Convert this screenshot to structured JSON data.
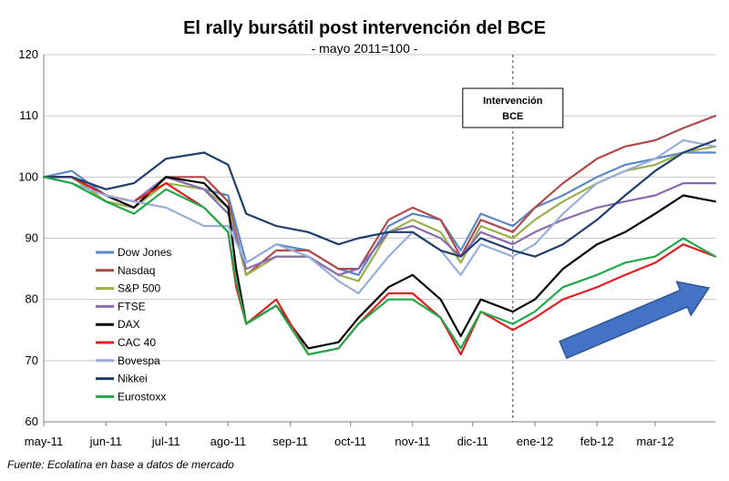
{
  "chart_data": {
    "type": "line",
    "title": "El rally bursátil post intervención del BCE",
    "subtitle": "- mayo 2011=100 -",
    "xlabel": "",
    "ylabel": "",
    "ylim": [
      60,
      120
    ],
    "yticks": [
      60,
      70,
      80,
      90,
      100,
      110,
      120
    ],
    "x_range": [
      "2011-05-01",
      "2012-03-31"
    ],
    "xticks": [
      {
        "label": "may-11",
        "date": "2011-05-01"
      },
      {
        "label": "jun-11",
        "date": "2011-06-01"
      },
      {
        "label": "jul-11",
        "date": "2011-07-01"
      },
      {
        "label": "ago-11",
        "date": "2011-08-01"
      },
      {
        "label": "sep-11",
        "date": "2011-09-01"
      },
      {
        "label": "oct-11",
        "date": "2011-10-01"
      },
      {
        "label": "nov-11",
        "date": "2011-11-01"
      },
      {
        "label": "dic-11",
        "date": "2011-12-01"
      },
      {
        "label": "ene-12",
        "date": "2012-01-01"
      },
      {
        "label": "feb-12",
        "date": "2012-02-01"
      },
      {
        "label": "mar-12",
        "date": "2012-03-01"
      }
    ],
    "grid": true,
    "legend_position": "left-bottom",
    "source": "Fuente: Ecolatina en base a datos de mercado",
    "annotation": {
      "lines": [
        "Intervención",
        "BCE"
      ],
      "date": "2011-12-21"
    },
    "arrow_color": "#4472C4",
    "series": [
      {
        "name": "Dow Jones",
        "color": "#5B87C7",
        "x": [
          "2011-05-01",
          "2011-05-15",
          "2011-06-01",
          "2011-06-15",
          "2011-07-01",
          "2011-07-20",
          "2011-08-01",
          "2011-08-10",
          "2011-08-25",
          "2011-09-10",
          "2011-09-25",
          "2011-10-05",
          "2011-10-20",
          "2011-11-01",
          "2011-11-15",
          "2011-11-25",
          "2011-12-05",
          "2011-12-21",
          "2012-01-01",
          "2012-01-15",
          "2012-02-01",
          "2012-02-15",
          "2012-03-01",
          "2012-03-15",
          "2012-03-31"
        ],
        "values": [
          100,
          101,
          97,
          96,
          100,
          98,
          97,
          86,
          89,
          88,
          85,
          84,
          92,
          94,
          93,
          88,
          94,
          92,
          95,
          97,
          100,
          102,
          103,
          104,
          104
        ]
      },
      {
        "name": "Nasdaq",
        "color": "#B04A4A",
        "x": [
          "2011-05-01",
          "2011-05-15",
          "2011-06-01",
          "2011-06-15",
          "2011-07-01",
          "2011-07-20",
          "2011-08-01",
          "2011-08-10",
          "2011-08-25",
          "2011-09-10",
          "2011-09-25",
          "2011-10-05",
          "2011-10-20",
          "2011-11-01",
          "2011-11-15",
          "2011-11-25",
          "2011-12-05",
          "2011-12-21",
          "2012-01-01",
          "2012-01-15",
          "2012-02-01",
          "2012-02-15",
          "2012-03-01",
          "2012-03-15",
          "2012-03-31"
        ],
        "values": [
          100,
          100,
          96,
          95,
          100,
          100,
          96,
          84,
          88,
          88,
          85,
          85,
          93,
          95,
          93,
          87,
          93,
          91,
          95,
          99,
          103,
          105,
          106,
          108,
          110
        ]
      },
      {
        "name": "S&P 500",
        "color": "#98B04A",
        "x": [
          "2011-05-01",
          "2011-05-15",
          "2011-06-01",
          "2011-06-15",
          "2011-07-01",
          "2011-07-20",
          "2011-08-01",
          "2011-08-10",
          "2011-08-25",
          "2011-09-10",
          "2011-09-25",
          "2011-10-05",
          "2011-10-20",
          "2011-11-01",
          "2011-11-15",
          "2011-11-25",
          "2011-12-05",
          "2011-12-21",
          "2012-01-01",
          "2012-01-15",
          "2012-02-01",
          "2012-02-15",
          "2012-03-01",
          "2012-03-15",
          "2012-03-31"
        ],
        "values": [
          100,
          100,
          96,
          95,
          99,
          98,
          95,
          84,
          87,
          87,
          84,
          83,
          91,
          93,
          91,
          86,
          92,
          90,
          93,
          96,
          99,
          101,
          102,
          104,
          105
        ]
      },
      {
        "name": "FTSE",
        "color": "#8A6BB0",
        "x": [
          "2011-05-01",
          "2011-05-15",
          "2011-06-01",
          "2011-06-15",
          "2011-07-01",
          "2011-07-20",
          "2011-08-01",
          "2011-08-10",
          "2011-08-25",
          "2011-09-10",
          "2011-09-25",
          "2011-10-05",
          "2011-10-20",
          "2011-11-01",
          "2011-11-15",
          "2011-11-25",
          "2011-12-05",
          "2011-12-21",
          "2012-01-01",
          "2012-01-15",
          "2012-02-01",
          "2012-02-15",
          "2012-03-01",
          "2012-03-15",
          "2012-03-31"
        ],
        "values": [
          100,
          100,
          97,
          96,
          100,
          98,
          94,
          85,
          87,
          87,
          84,
          85,
          91,
          92,
          90,
          87,
          91,
          89,
          91,
          93,
          95,
          96,
          97,
          99,
          99
        ]
      },
      {
        "name": "DAX",
        "color": "#000000",
        "x": [
          "2011-05-01",
          "2011-05-15",
          "2011-06-01",
          "2011-06-15",
          "2011-07-01",
          "2011-07-20",
          "2011-08-01",
          "2011-08-05",
          "2011-08-10",
          "2011-08-25",
          "2011-09-10",
          "2011-09-25",
          "2011-10-05",
          "2011-10-20",
          "2011-11-01",
          "2011-11-15",
          "2011-11-25",
          "2011-12-05",
          "2011-12-21",
          "2012-01-01",
          "2012-01-15",
          "2012-02-01",
          "2012-02-15",
          "2012-03-01",
          "2012-03-15",
          "2012-03-31"
        ],
        "values": [
          100,
          100,
          97,
          95,
          100,
          99,
          95,
          85,
          76,
          79,
          72,
          73,
          77,
          82,
          84,
          80,
          74,
          80,
          78,
          80,
          85,
          89,
          91,
          94,
          97,
          96
        ]
      },
      {
        "name": "CAC 40",
        "color": "#E02020",
        "x": [
          "2011-05-01",
          "2011-05-15",
          "2011-06-01",
          "2011-06-15",
          "2011-07-01",
          "2011-07-20",
          "2011-08-01",
          "2011-08-05",
          "2011-08-10",
          "2011-08-25",
          "2011-09-10",
          "2011-09-25",
          "2011-10-05",
          "2011-10-20",
          "2011-11-01",
          "2011-11-15",
          "2011-11-25",
          "2011-12-05",
          "2011-12-21",
          "2012-01-01",
          "2012-01-15",
          "2012-02-01",
          "2012-02-15",
          "2012-03-01",
          "2012-03-15",
          "2012-03-31"
        ],
        "values": [
          100,
          100,
          97,
          96,
          99,
          95,
          91,
          82,
          76,
          80,
          71,
          72,
          76,
          81,
          81,
          77,
          71,
          78,
          75,
          77,
          80,
          82,
          84,
          86,
          89,
          87
        ]
      },
      {
        "name": "Bovespa",
        "color": "#98AEDA",
        "x": [
          "2011-05-01",
          "2011-05-15",
          "2011-06-01",
          "2011-06-15",
          "2011-07-01",
          "2011-07-20",
          "2011-08-01",
          "2011-08-10",
          "2011-08-25",
          "2011-09-10",
          "2011-09-25",
          "2011-10-05",
          "2011-10-20",
          "2011-11-01",
          "2011-11-15",
          "2011-11-25",
          "2011-12-05",
          "2011-12-21",
          "2012-01-01",
          "2012-01-15",
          "2012-02-01",
          "2012-02-15",
          "2012-03-01",
          "2012-03-15",
          "2012-03-31"
        ],
        "values": [
          100,
          99,
          97,
          96,
          95,
          92,
          92,
          86,
          89,
          87,
          83,
          81,
          87,
          91,
          88,
          84,
          89,
          87,
          89,
          94,
          99,
          101,
          103,
          106,
          105
        ]
      },
      {
        "name": "Nikkei",
        "color": "#1F3E6E",
        "x": [
          "2011-05-01",
          "2011-05-15",
          "2011-06-01",
          "2011-06-15",
          "2011-07-01",
          "2011-07-20",
          "2011-08-01",
          "2011-08-10",
          "2011-08-25",
          "2011-09-10",
          "2011-09-25",
          "2011-10-05",
          "2011-10-20",
          "2011-11-01",
          "2011-11-15",
          "2011-11-25",
          "2011-12-05",
          "2011-12-21",
          "2012-01-01",
          "2012-01-15",
          "2012-02-01",
          "2012-02-15",
          "2012-03-01",
          "2012-03-15",
          "2012-03-31"
        ],
        "values": [
          100,
          100,
          98,
          99,
          103,
          104,
          102,
          94,
          92,
          91,
          89,
          90,
          91,
          91,
          88,
          87,
          90,
          88,
          87,
          89,
          93,
          97,
          101,
          104,
          106
        ]
      },
      {
        "name": "Eurostoxx",
        "color": "#22A84A",
        "x": [
          "2011-05-01",
          "2011-05-15",
          "2011-06-01",
          "2011-06-15",
          "2011-07-01",
          "2011-07-20",
          "2011-08-01",
          "2011-08-05",
          "2011-08-10",
          "2011-08-25",
          "2011-09-10",
          "2011-09-25",
          "2011-10-05",
          "2011-10-20",
          "2011-11-01",
          "2011-11-15",
          "2011-11-25",
          "2011-12-05",
          "2011-12-21",
          "2012-01-01",
          "2012-01-15",
          "2012-02-01",
          "2012-02-15",
          "2012-03-01",
          "2012-03-15",
          "2012-03-31"
        ],
        "values": [
          100,
          99,
          96,
          94,
          98,
          95,
          91,
          83,
          76,
          79,
          71,
          72,
          76,
          80,
          80,
          77,
          72,
          78,
          76,
          78,
          82,
          84,
          86,
          87,
          90,
          87
        ]
      }
    ]
  }
}
